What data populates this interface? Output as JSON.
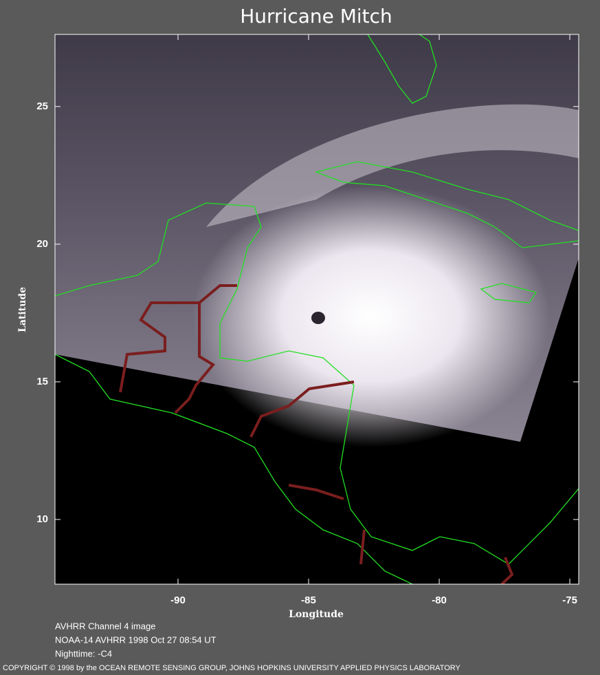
{
  "chart_data": {
    "type": "map",
    "title": "Hurricane Mitch",
    "xlabel": "Longitude",
    "ylabel": "Latitude",
    "xlim": [
      -94.71,
      -74.66
    ],
    "ylim": [
      7.65,
      27.62
    ],
    "xticks": [
      -90,
      -85,
      -80,
      -75
    ],
    "yticks": [
      10,
      15,
      20,
      25
    ],
    "notes": [
      "AVHRR Channel 4 image",
      "NOAA-14 AVHRR 1998 Oct 27 08:54 UT",
      "Nighttime: -C4"
    ],
    "copyright": "COPYRIGHT © 1998 by the OCEAN REMOTE SENSING GROUP, JOHNS HOPKINS UNIVERSITY APPLIED PHYSICS LABORATORY"
  }
}
